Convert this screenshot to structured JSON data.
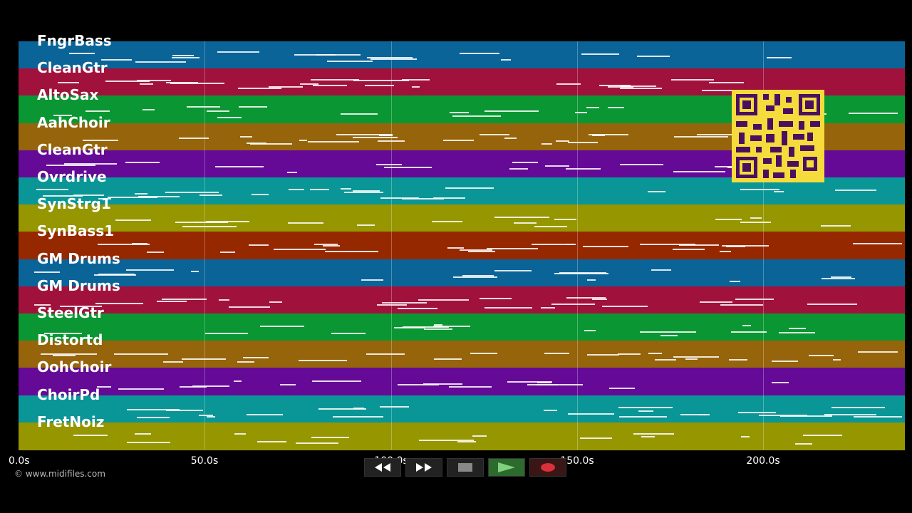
{
  "tracks": [
    {
      "label": "FngrBass",
      "color": "#0a6497"
    },
    {
      "label": "CleanGtr",
      "color": "#a0123c"
    },
    {
      "label": "AltoSax",
      "color": "#0a9632"
    },
    {
      "label": "AahChoir",
      "color": "#96640a"
    },
    {
      "label": "CleanGtr",
      "color": "#640a96"
    },
    {
      "label": "Ovrdrive",
      "color": "#0a9696"
    },
    {
      "label": "SynStrg1",
      "color": "#969600"
    },
    {
      "label": "SynBass1",
      "color": "#962800"
    },
    {
      "label": "GM Drums",
      "color": "#0a6497"
    },
    {
      "label": "GM Drums",
      "color": "#a0123c"
    },
    {
      "label": "SteelGtr",
      "color": "#0a9632"
    },
    {
      "label": "Distortd",
      "color": "#96640a"
    },
    {
      "label": "OohChoir",
      "color": "#640a96"
    },
    {
      "label": "ChoirPd",
      "color": "#0a9696"
    },
    {
      "label": "FretNoiz",
      "color": "#969600"
    }
  ],
  "time_axis": {
    "ticks": [
      {
        "label": "0.0s",
        "seconds": 0
      },
      {
        "label": "50.0s",
        "seconds": 50
      },
      {
        "label": "100.0s",
        "seconds": 100
      },
      {
        "label": "150.0s",
        "seconds": 150
      },
      {
        "label": "200.0s",
        "seconds": 200
      }
    ],
    "max_seconds": 238
  },
  "copyright": "© www.midifiles.com",
  "transport": {
    "rewind": "rewind-icon",
    "fast_forward": "fast-forward-icon",
    "stop": "stop-icon",
    "play": "play-icon",
    "record": "record-icon"
  },
  "qr_code": "qr-code"
}
